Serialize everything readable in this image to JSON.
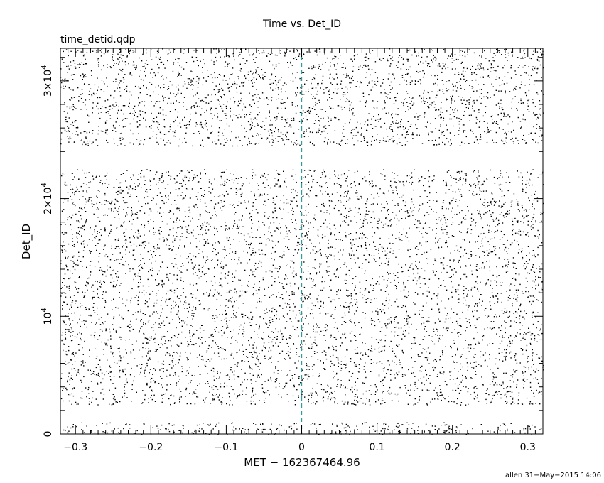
{
  "chart_data": {
    "type": "scatter",
    "title": "Time vs. Det_ID",
    "subtitle": "time_detid.qdp",
    "xlabel": "MET − 162367464.96",
    "ylabel": "Det_ID",
    "xlim": [
      -0.32,
      0.32
    ],
    "ylim": [
      0,
      32768
    ],
    "x_ticks": [
      {
        "value": -0.3,
        "label": "−0.3"
      },
      {
        "value": -0.2,
        "label": "−0.2"
      },
      {
        "value": -0.1,
        "label": "−0.1"
      },
      {
        "value": 0,
        "label": "0"
      },
      {
        "value": 0.1,
        "label": "0.1"
      },
      {
        "value": 0.2,
        "label": "0.2"
      },
      {
        "value": 0.3,
        "label": "0.3"
      }
    ],
    "y_ticks": [
      {
        "value": 0,
        "base": "0",
        "exp": ""
      },
      {
        "value": 10000,
        "base": "10",
        "exp": "4"
      },
      {
        "value": 20000,
        "base": "2×10",
        "exp": "4"
      },
      {
        "value": 30000,
        "base": "3×10",
        "exp": "4"
      }
    ],
    "reference_line": {
      "x": 0,
      "color": "#2a9d9d",
      "style": "dashed"
    },
    "point_color": "#000000",
    "point_bands": [
      {
        "y_range": [
          0,
          1000
        ],
        "points_per_band": 260
      },
      {
        "y_range": [
          2500,
          22500
        ],
        "points_per_band": 5400
      },
      {
        "y_range": [
          24500,
          32768
        ],
        "points_per_band": 2300
      }
    ],
    "grid": false,
    "legend": "none"
  },
  "footer": {
    "credit": "allen 31−May−2015 14:06"
  }
}
